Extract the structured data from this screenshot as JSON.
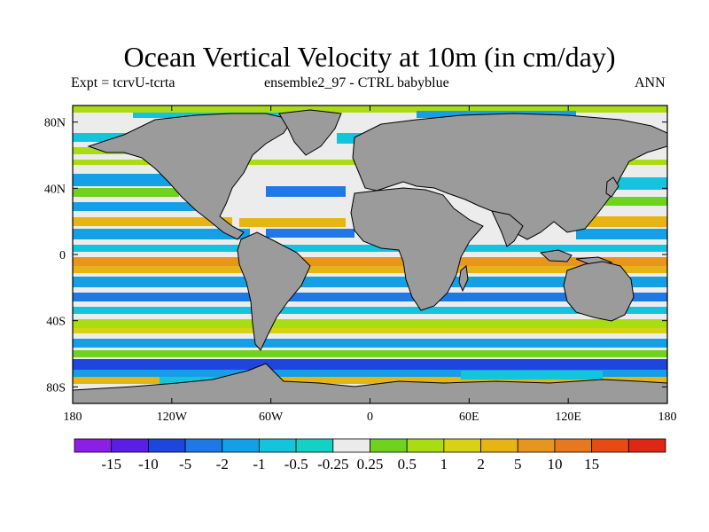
{
  "title": "Ocean Vertical Velocity at 10m (in cm/day)",
  "subtitle_left": "Expt = tcrvU-tcrta",
  "subtitle_center": "ensemble2_97 - CTRL babyblue",
  "subtitle_right": "ANN",
  "map": {
    "lon_ticks": [
      "180",
      "120W",
      "60W",
      "0",
      "60E",
      "120E",
      "180"
    ],
    "lat_ticks": [
      "80N",
      "40N",
      "0",
      "40S",
      "80S"
    ],
    "land_color": "#9b9b9b",
    "ocean_background": "#ececec"
  },
  "colorbar": {
    "colors": [
      "#8c1ee6",
      "#5a1ee6",
      "#1e46dc",
      "#1e78e6",
      "#14a0e6",
      "#14c3dc",
      "#14d2c3",
      "#ebebeb",
      "#6ed21e",
      "#aadc14",
      "#d7d214",
      "#e6b414",
      "#e6961e",
      "#e6781e",
      "#e64b14",
      "#dc2814"
    ],
    "labels": [
      "-15",
      "-10",
      "-5",
      "-2",
      "-1",
      "-0.5",
      "-0.25",
      "0.25",
      "0.5",
      "1",
      "2",
      "5",
      "10",
      "15"
    ]
  }
}
